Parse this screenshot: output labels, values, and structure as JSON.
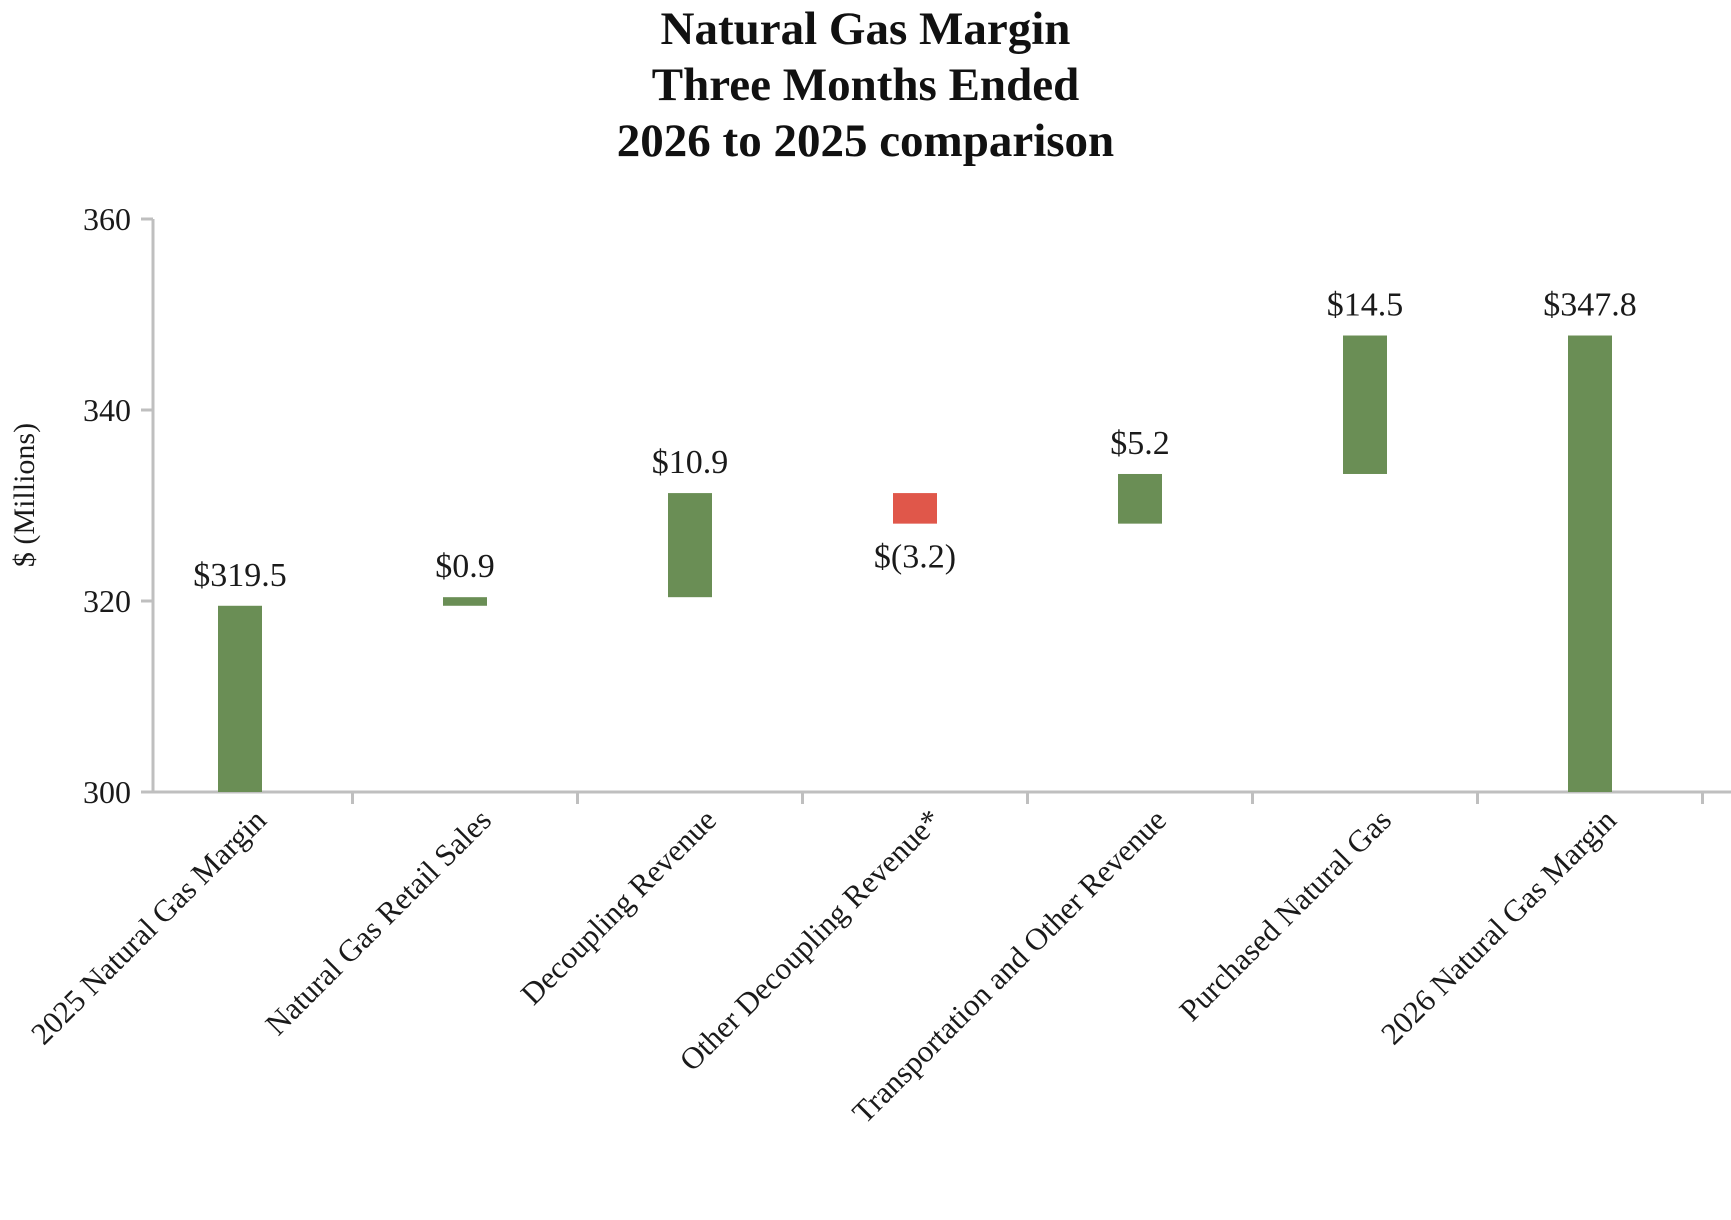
{
  "chart_data": {
    "type": "waterfall",
    "title_lines": [
      "Natural Gas Margin",
      "Three Months Ended",
      "2026 to 2025 comparison"
    ],
    "ylabel": "$ (Millions)",
    "ylim": [
      300,
      360
    ],
    "yticks": [
      300,
      320,
      340,
      360
    ],
    "ytick_labels": [
      "300",
      "320",
      "340",
      "360"
    ],
    "grid": false,
    "categories": [
      "2025 Natural Gas Margin",
      "Natural Gas Retail Sales",
      "Decoupling Revenue",
      "Other Decoupling Revenue*",
      "Transportation and Other Revenue",
      "Purchased Natural Gas",
      "2026 Natural Gas Margin"
    ],
    "bars": [
      {
        "kind": "total",
        "start": 300,
        "end": 319.5,
        "label": "$319.5",
        "color": "#6a8e55"
      },
      {
        "kind": "delta",
        "start": 319.5,
        "end": 320.4,
        "label": "$0.9",
        "color": "#6a8e55"
      },
      {
        "kind": "delta",
        "start": 320.4,
        "end": 331.3,
        "label": "$10.9",
        "color": "#6a8e55"
      },
      {
        "kind": "delta",
        "start": 331.3,
        "end": 328.1,
        "label": "$(3.2)",
        "color": "#e0574a"
      },
      {
        "kind": "delta",
        "start": 328.1,
        "end": 333.3,
        "label": "$5.2",
        "color": "#6a8e55"
      },
      {
        "kind": "delta",
        "start": 333.3,
        "end": 347.8,
        "label": "$14.5",
        "color": "#6a8e55"
      },
      {
        "kind": "total",
        "start": 300,
        "end": 347.8,
        "label": "$347.8",
        "color": "#6a8e55"
      }
    ]
  },
  "colors": {
    "increase": "#6a8e55",
    "decrease": "#e0574a",
    "axis": "#bfbfbf",
    "text": "#1a1a1a"
  }
}
